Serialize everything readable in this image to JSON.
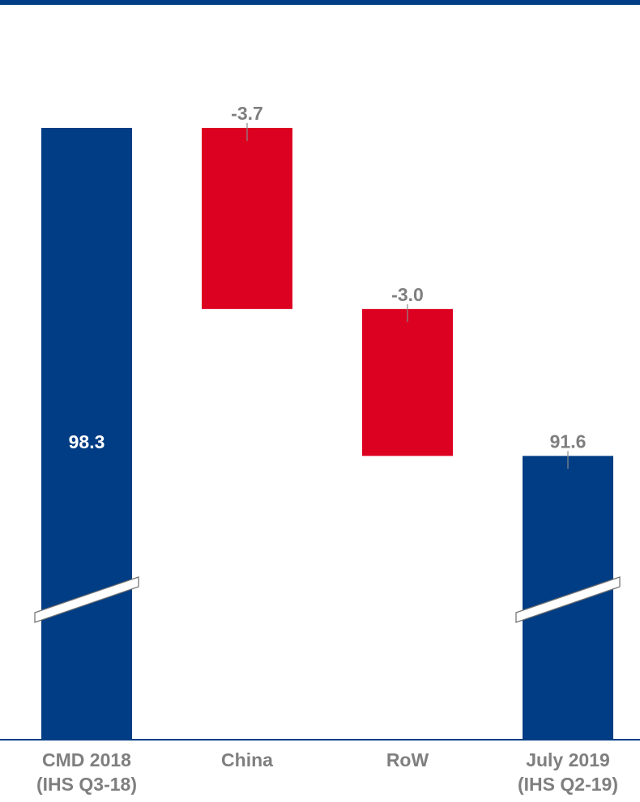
{
  "colors": {
    "total": "#003d84",
    "decrease": "#dd0121",
    "label_gray": "#7f7f7f",
    "label_white": "#ffffff",
    "axis": "#003d84",
    "top_rule": "#003d84"
  },
  "chart_data": {
    "type": "bar",
    "variant": "waterfall",
    "title": "",
    "xlabel": "",
    "ylabel": "",
    "categories": [
      [
        "CMD 2018",
        "(IHS Q3-18)"
      ],
      [
        "China"
      ],
      [
        "RoW"
      ],
      [
        "July 2019",
        "(IHS Q2-19)"
      ]
    ],
    "bars": [
      {
        "kind": "total",
        "start": 0,
        "end": 98.3,
        "label": "98.3",
        "label_position": "inside",
        "axis_break": true
      },
      {
        "kind": "decrease",
        "start": 98.3,
        "end": 94.6,
        "label": "-3.7",
        "label_position": "above",
        "axis_break": false
      },
      {
        "kind": "decrease",
        "start": 94.6,
        "end": 91.6,
        "label": "-3.0",
        "label_position": "above",
        "axis_break": false
      },
      {
        "kind": "total",
        "start": 0,
        "end": 91.6,
        "label": "91.6",
        "label_position": "above",
        "axis_break": true
      }
    ],
    "axis_break": true,
    "grid": false,
    "legend": "none"
  }
}
